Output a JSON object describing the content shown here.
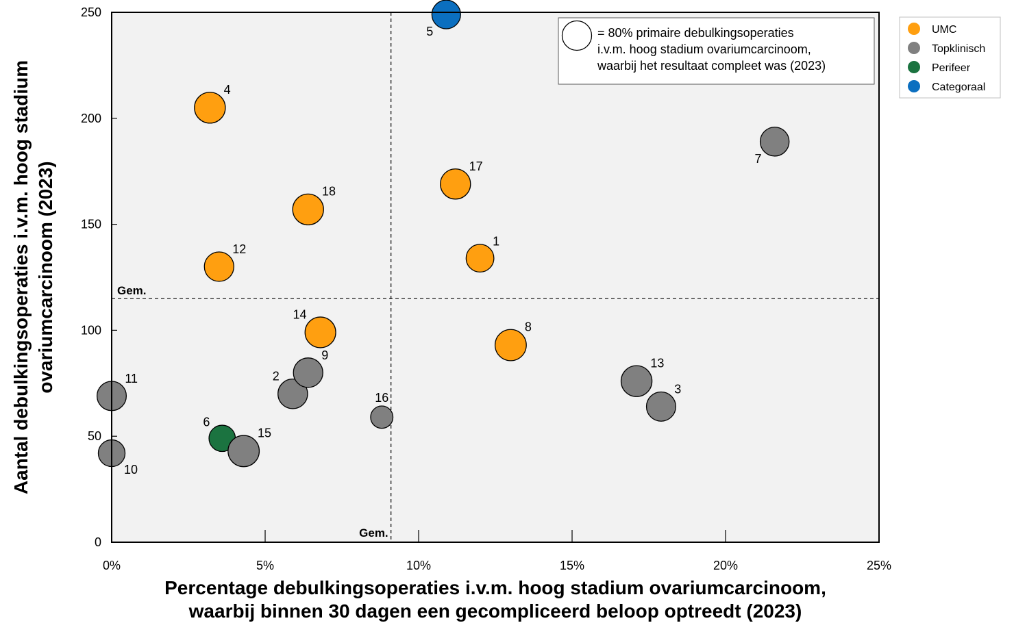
{
  "chart_data": {
    "type": "scatter",
    "title": "",
    "xlabel": [
      "Percentage debulkingsoperaties i.v.m. hoog stadium ovariumcarcinoom,",
      "waarbij binnen 30 dagen een gecompliceerd beloop optreedt (2023)"
    ],
    "ylabel": [
      "Aantal debulkingsoperaties i.v.m.  hoog stadium",
      "ovariumcarcinoom (2023)"
    ],
    "xlim": [
      0,
      25
    ],
    "ylim": [
      0,
      250
    ],
    "x_ticks": [
      0,
      5,
      10,
      15,
      20,
      25
    ],
    "x_tick_labels": [
      "0%",
      "5%",
      "10%",
      "15%",
      "20%",
      "25%"
    ],
    "y_ticks": [
      0,
      50,
      100,
      150,
      200,
      250
    ],
    "y_tick_labels": [
      "0",
      "50",
      "100",
      "150",
      "200",
      "250"
    ],
    "grid": false,
    "mean_x": 9.1,
    "mean_y": 115,
    "mean_label": "Gem.",
    "size_reference": {
      "value": 80,
      "text": [
        "= 80% primaire debulkingsoperaties",
        "i.v.m. hoog stadium ovariumcarcinoom,",
        "waarbij het resultaat compleet was (2023)"
      ]
    },
    "legend_position": "outside-top-right",
    "series": [
      {
        "name": "UMC",
        "color": "#FF9F10"
      },
      {
        "name": "Topklinisch",
        "color": "#808080"
      },
      {
        "name": "Perifeer",
        "color": "#1B7340"
      },
      {
        "name": "Categoraal",
        "color": "#0B6FC0"
      }
    ],
    "points": [
      {
        "label": "1",
        "x": 12.0,
        "y": 134,
        "size": 71,
        "series": "UMC",
        "label_pos": "ur"
      },
      {
        "label": "2",
        "x": 5.9,
        "y": 70,
        "size": 81,
        "series": "Topklinisch",
        "label_pos": "ul"
      },
      {
        "label": "3",
        "x": 17.9,
        "y": 64,
        "size": 79,
        "series": "Topklinisch",
        "label_pos": "ur"
      },
      {
        "label": "4",
        "x": 3.2,
        "y": 205,
        "size": 88,
        "series": "UMC",
        "label_pos": "ur"
      },
      {
        "label": "5",
        "x": 10.9,
        "y": 249,
        "size": 76,
        "series": "Categoraal",
        "label_pos": "bl"
      },
      {
        "label": "6",
        "x": 3.6,
        "y": 49,
        "size": 64,
        "series": "Perifeer",
        "label_pos": "ul"
      },
      {
        "label": "7",
        "x": 21.6,
        "y": 189,
        "size": 77,
        "series": "Topklinisch",
        "label_pos": "bl"
      },
      {
        "label": "8",
        "x": 13.0,
        "y": 93,
        "size": 90,
        "series": "UMC",
        "label_pos": "ur"
      },
      {
        "label": "9",
        "x": 6.4,
        "y": 80,
        "size": 80,
        "series": "Topklinisch",
        "label_pos": "ur"
      },
      {
        "label": "10",
        "x": 0.0,
        "y": 42,
        "size": 66,
        "series": "Topklinisch",
        "label_pos": "br"
      },
      {
        "label": "11",
        "x": 0.0,
        "y": 69,
        "size": 79,
        "series": "Topklinisch",
        "label_pos": "ur"
      },
      {
        "label": "12",
        "x": 3.5,
        "y": 130,
        "size": 80,
        "series": "UMC",
        "label_pos": "ur"
      },
      {
        "label": "13",
        "x": 17.1,
        "y": 76,
        "size": 88,
        "series": "Topklinisch",
        "label_pos": "ur"
      },
      {
        "label": "14",
        "x": 6.8,
        "y": 99,
        "size": 87,
        "series": "UMC",
        "label_pos": "ul"
      },
      {
        "label": "15",
        "x": 4.3,
        "y": 43,
        "size": 90,
        "series": "Topklinisch",
        "label_pos": "ur"
      },
      {
        "label": "16",
        "x": 8.8,
        "y": 59,
        "size": 46,
        "series": "Topklinisch",
        "label_pos": "u"
      },
      {
        "label": "17",
        "x": 11.2,
        "y": 169,
        "size": 84,
        "series": "UMC",
        "label_pos": "ur"
      },
      {
        "label": "18",
        "x": 6.4,
        "y": 157,
        "size": 88,
        "series": "UMC",
        "label_pos": "ur"
      }
    ]
  }
}
